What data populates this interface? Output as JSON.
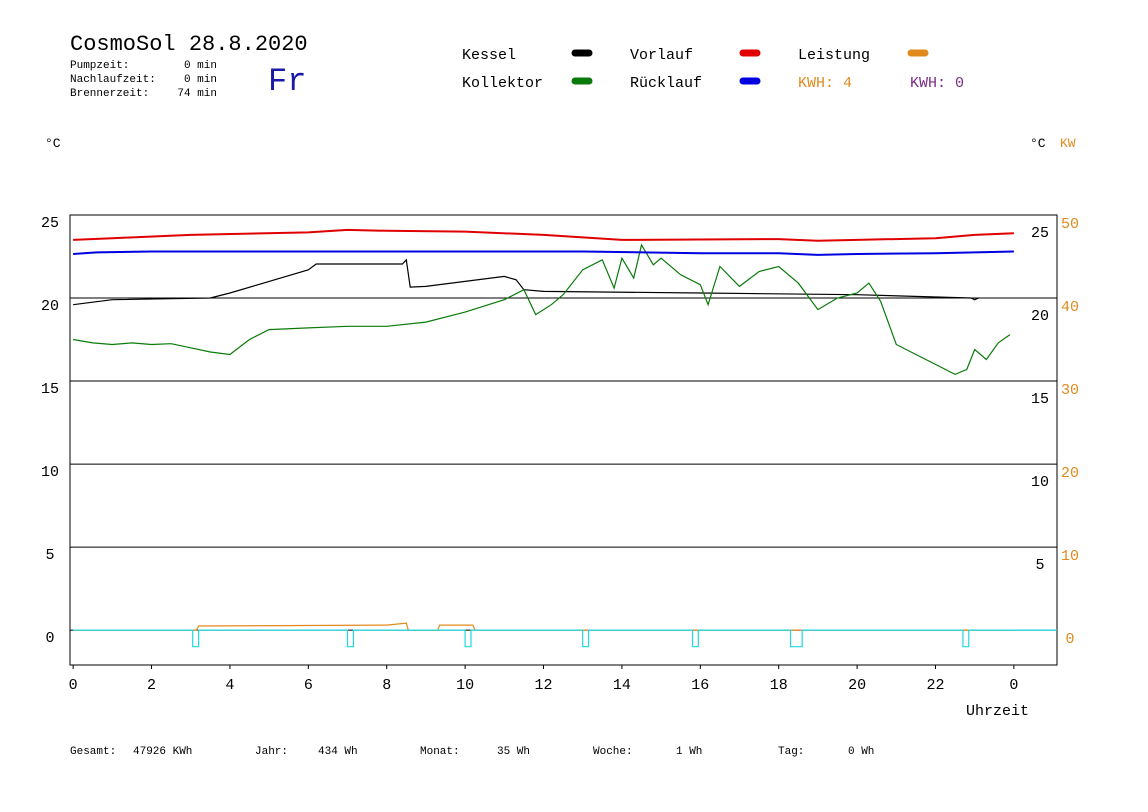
{
  "header": {
    "title": "CosmoSol 28.8.2020",
    "weekday": "Fr",
    "stats": [
      {
        "label": "Pumpzeit:",
        "value": "0 min"
      },
      {
        "label": "Nachlaufzeit:",
        "value": "0 min"
      },
      {
        "label": "Brennerzeit:",
        "value": "74 min"
      }
    ]
  },
  "kwh_labels": [
    {
      "text": "KWH: 4",
      "color": "#e08a1e"
    },
    {
      "text": "KWH: 0",
      "color": "#7a2a8a"
    }
  ],
  "chart_data": {
    "type": "line",
    "y_label": "°C",
    "y_label_right": "°C",
    "y2_label": "KW",
    "x_label": "Uhrzeit",
    "xlim": [
      -0.08,
      25.1
    ],
    "xticks": [
      0,
      2,
      4,
      6,
      8,
      10,
      12,
      14,
      16,
      18,
      20,
      22,
      {
        "value": 24,
        "label": "0"
      }
    ],
    "ylim": [
      -2.1,
      25
    ],
    "yticks": [
      0,
      5,
      10,
      15,
      20,
      25
    ],
    "y_ticks_right": [
      25,
      20,
      15,
      10,
      5
    ],
    "y2lim": [
      -4.2,
      50
    ],
    "y2ticks": [
      0,
      10,
      20,
      30,
      40,
      50
    ],
    "y2_color": "#e08a1e",
    "grid": true,
    "series": [
      {
        "name": "Kessel",
        "color": "#000000",
        "x": [
          0,
          1,
          3.5,
          4,
          5,
          6,
          6.2,
          8.4,
          8.5,
          8.6,
          9,
          10,
          11,
          11.3,
          11.5,
          12,
          16,
          20,
          22.9,
          23.0,
          23.1
        ],
        "values": [
          19.6,
          19.9,
          20,
          20.3,
          21.0,
          21.7,
          22.05,
          22.05,
          22.3,
          20.66,
          20.7,
          21.0,
          21.3,
          21.1,
          20.5,
          20.4,
          20.3,
          20.2,
          20.0,
          19.9,
          20.0
        ]
      },
      {
        "name": "Kollektor",
        "color": "#0a7a0a",
        "x": [
          0,
          0.5,
          1,
          1.5,
          2,
          2.5,
          3,
          3.5,
          4,
          4.5,
          5,
          6,
          7,
          8,
          9,
          10,
          11,
          11.5,
          11.8,
          12.2,
          12.5,
          13,
          13.5,
          13.8,
          14,
          14.3,
          14.5,
          14.8,
          15,
          15.5,
          16,
          16.2,
          16.5,
          17,
          17.5,
          18,
          18.5,
          19,
          19.5,
          20,
          20.3,
          20.6,
          21,
          21.5,
          22,
          22.5,
          22.8,
          23,
          23.3,
          23.6,
          23.9
        ],
        "values": [
          17.5,
          17.3,
          17.2,
          17.3,
          17.2,
          17.25,
          17.0,
          16.75,
          16.6,
          17.5,
          18.1,
          18.2,
          18.3,
          18.3,
          18.55,
          19.15,
          19.9,
          20.5,
          19.0,
          19.6,
          20.2,
          21.7,
          22.3,
          20.6,
          22.4,
          21.2,
          23.2,
          22.0,
          22.4,
          21.4,
          20.8,
          19.6,
          21.9,
          20.7,
          21.6,
          21.9,
          20.9,
          19.3,
          20.0,
          20.3,
          20.9,
          19.8,
          17.2,
          16.6,
          16.0,
          15.4,
          15.7,
          16.9,
          16.3,
          17.3,
          17.8
        ]
      },
      {
        "name": "Vorlauf",
        "color": "#e00000",
        "x": [
          0,
          1,
          3,
          6,
          7,
          8,
          10,
          12,
          14,
          18,
          19,
          20,
          22,
          23,
          24
        ],
        "values": [
          23.5,
          23.6,
          23.8,
          23.95,
          24.1,
          24.05,
          24.0,
          23.8,
          23.5,
          23.55,
          23.45,
          23.5,
          23.6,
          23.8,
          23.9
        ]
      },
      {
        "name": "Rücklauf",
        "color": "#0000e0",
        "x": [
          0,
          0.6,
          2,
          6,
          10,
          13,
          16,
          18,
          19,
          20,
          22,
          24
        ],
        "values": [
          22.65,
          22.75,
          22.8,
          22.8,
          22.8,
          22.8,
          22.7,
          22.7,
          22.6,
          22.65,
          22.7,
          22.8
        ]
      },
      {
        "name": "Leistung",
        "color": "#e08a1e",
        "axis": "y2",
        "x": [
          0,
          3.15,
          3.2,
          8.0,
          8.5,
          8.55,
          9.3,
          9.35,
          10.2,
          10.25,
          24
        ],
        "values": [
          0,
          0,
          0.5,
          0.6,
          0.85,
          0,
          0,
          0.6,
          0.6,
          0,
          0
        ]
      },
      {
        "color": "#20d8e0",
        "x": [
          0,
          3.05,
          3.05,
          3.2,
          3.2,
          7.0,
          7.0,
          7.15,
          7.15,
          10.0,
          10.0,
          10.15,
          10.15,
          13.0,
          13.0,
          13.15,
          13.15,
          15.8,
          15.8,
          15.95,
          15.95,
          18.3,
          18.3,
          18.6,
          18.6,
          22.7,
          22.7,
          22.85,
          22.85,
          25.1
        ],
        "values": [
          0,
          0,
          -1,
          -1,
          0,
          0,
          -1,
          -1,
          0,
          0,
          -1,
          -1,
          0,
          0,
          -1,
          -1,
          0,
          0,
          -1,
          -1,
          0,
          0,
          -1,
          -1,
          0,
          0,
          -1,
          -1,
          0,
          0
        ]
      }
    ]
  },
  "footer": [
    {
      "label": "Gesamt:",
      "value": "47926 KWh"
    },
    {
      "label": "Jahr:",
      "value": "434 Wh"
    },
    {
      "label": "Monat:",
      "value": "35 Wh"
    },
    {
      "label": "Woche:",
      "value": "1 Wh"
    },
    {
      "label": "Tag:",
      "value": "0 Wh"
    }
  ]
}
